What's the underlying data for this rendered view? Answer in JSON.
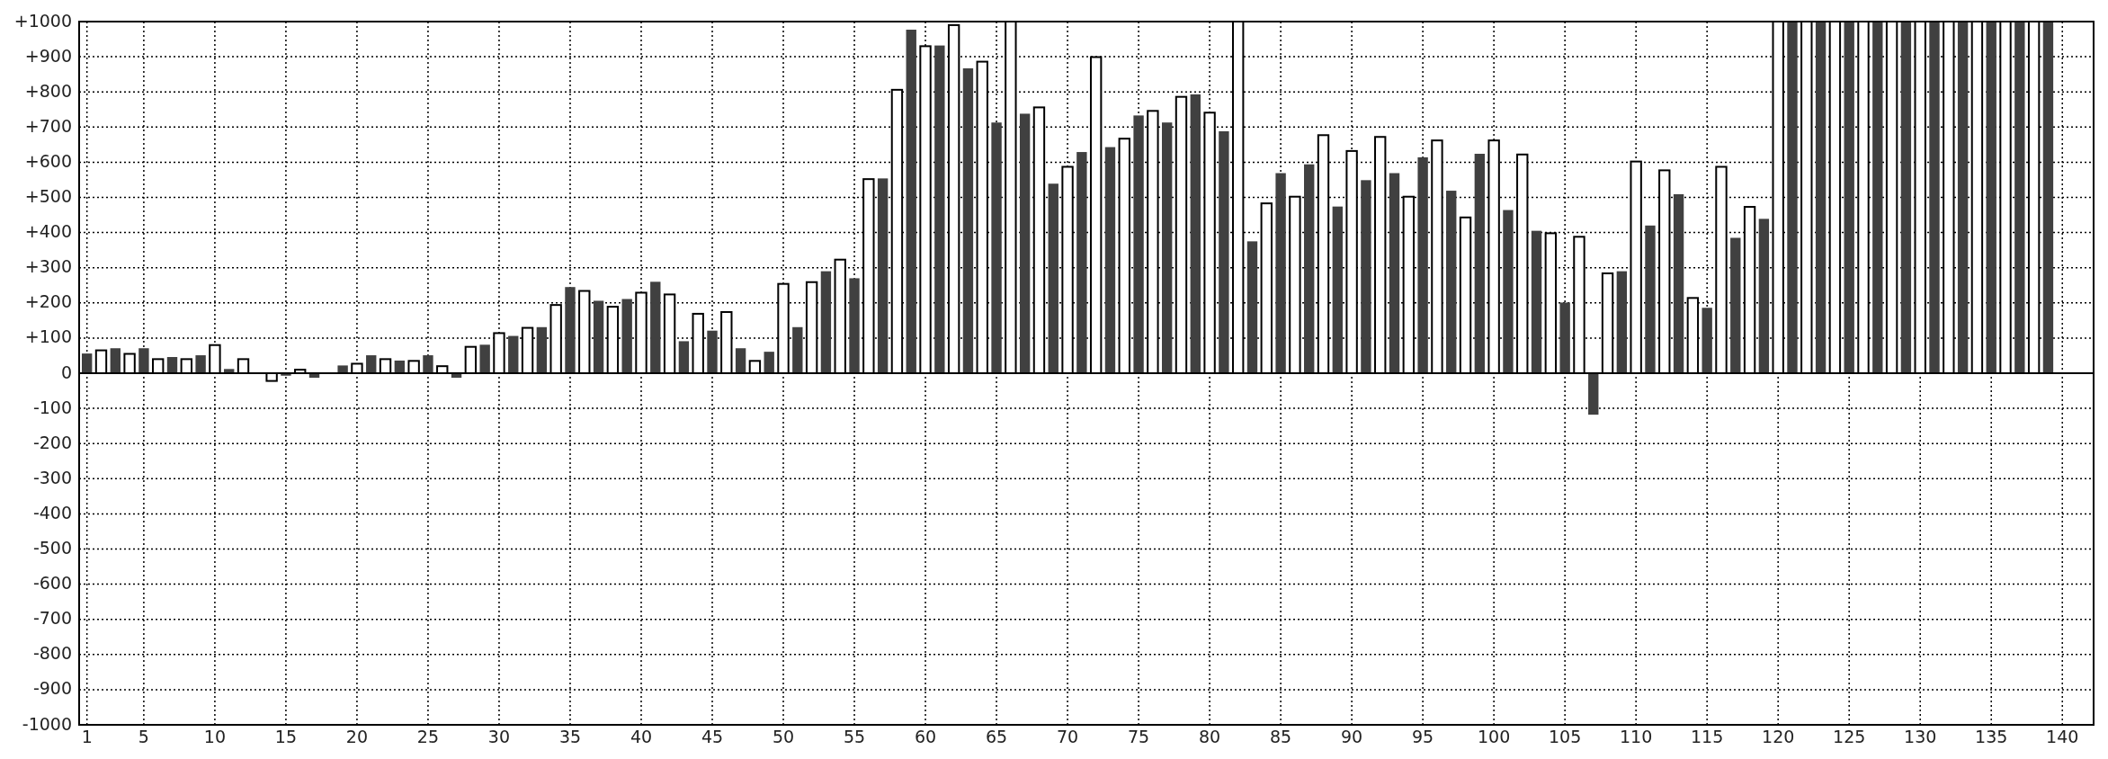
{
  "chart_data": {
    "type": "bar",
    "x": [
      1,
      2,
      3,
      4,
      5,
      6,
      7,
      8,
      9,
      10,
      11,
      12,
      13,
      14,
      15,
      16,
      17,
      18,
      19,
      20,
      21,
      22,
      23,
      24,
      25,
      26,
      27,
      28,
      29,
      30,
      31,
      32,
      33,
      34,
      35,
      36,
      37,
      38,
      39,
      40,
      41,
      42,
      43,
      44,
      45,
      46,
      47,
      48,
      49,
      50,
      51,
      52,
      53,
      54,
      55,
      56,
      57,
      58,
      59,
      60,
      61,
      62,
      63,
      64,
      65,
      66,
      67,
      68,
      69,
      70,
      71,
      72,
      73,
      74,
      75,
      76,
      77,
      78,
      79,
      80,
      81,
      82,
      83,
      84,
      85,
      86,
      87,
      88,
      89,
      90,
      91,
      92,
      93,
      94,
      95,
      96,
      97,
      98,
      99,
      100,
      101,
      102,
      103,
      104,
      105,
      106,
      107,
      108,
      109,
      110,
      111,
      112,
      113,
      114,
      115,
      116,
      117,
      118,
      119,
      120,
      121,
      122,
      123,
      124,
      125,
      126,
      127,
      128,
      129,
      130,
      131,
      132,
      133,
      134,
      135,
      136,
      137,
      138,
      139
    ],
    "values": [
      56,
      65,
      71,
      55,
      71,
      40,
      46,
      40,
      51,
      80,
      12,
      40,
      0,
      -22,
      -7,
      10,
      -13,
      0,
      22,
      27,
      51,
      40,
      36,
      35,
      51,
      20,
      -13,
      75,
      81,
      114,
      106,
      129,
      131,
      194,
      245,
      234,
      206,
      189,
      211,
      229,
      260,
      224,
      91,
      169,
      121,
      174,
      71,
      35,
      61,
      254,
      131,
      259,
      290,
      323,
      270,
      552,
      554,
      806,
      977,
      930,
      932,
      990,
      867,
      886,
      713,
      1000,
      738,
      756,
      539,
      587,
      629,
      899,
      643,
      667,
      733,
      746,
      713,
      786,
      793,
      741,
      688,
      1000,
      375,
      483,
      569,
      502,
      594,
      677,
      474,
      632,
      549,
      672,
      569,
      502,
      614,
      662,
      519,
      443,
      624,
      662,
      464,
      622,
      405,
      398,
      201,
      388,
      -118,
      284,
      290,
      602,
      420,
      577,
      509,
      214,
      186,
      587,
      385,
      473,
      439,
      1000,
      1000,
      1000,
      1000,
      1000,
      1000,
      1000,
      1000,
      1000,
      1000,
      1000,
      1000,
      1000,
      1000,
      1000,
      1000,
      1000,
      1000,
      1000,
      1000
    ],
    "colors": [
      "#404040",
      "#ffffff",
      "#404040",
      "#ffffff",
      "#404040",
      "#ffffff",
      "#404040",
      "#ffffff",
      "#404040",
      "#ffffff",
      "#404040",
      "#ffffff",
      "#404040",
      "#ffffff",
      "#404040",
      "#ffffff",
      "#404040",
      "#ffffff",
      "#404040",
      "#ffffff",
      "#404040",
      "#ffffff",
      "#404040",
      "#ffffff",
      "#404040",
      "#ffffff",
      "#404040",
      "#ffffff",
      "#404040",
      "#ffffff",
      "#404040",
      "#ffffff",
      "#404040",
      "#ffffff",
      "#404040",
      "#ffffff",
      "#404040",
      "#ffffff",
      "#404040",
      "#ffffff",
      "#404040",
      "#ffffff",
      "#404040",
      "#ffffff",
      "#404040",
      "#ffffff",
      "#404040",
      "#ffffff",
      "#404040",
      "#ffffff",
      "#404040",
      "#ffffff",
      "#404040",
      "#ffffff",
      "#404040",
      "#ffffff",
      "#404040",
      "#ffffff",
      "#404040",
      "#ffffff",
      "#404040",
      "#ffffff",
      "#404040",
      "#ffffff",
      "#404040",
      "#ffffff",
      "#404040",
      "#ffffff",
      "#404040",
      "#ffffff",
      "#404040",
      "#ffffff",
      "#404040",
      "#ffffff",
      "#404040",
      "#ffffff",
      "#404040",
      "#ffffff",
      "#404040",
      "#ffffff",
      "#404040",
      "#ffffff",
      "#404040",
      "#ffffff",
      "#404040",
      "#ffffff",
      "#404040",
      "#ffffff",
      "#404040",
      "#ffffff",
      "#404040",
      "#ffffff",
      "#404040",
      "#ffffff",
      "#404040",
      "#ffffff",
      "#404040",
      "#ffffff",
      "#404040",
      "#ffffff",
      "#404040",
      "#ffffff",
      "#404040",
      "#ffffff",
      "#404040",
      "#ffffff",
      "#404040",
      "#ffffff",
      "#404040",
      "#ffffff",
      "#404040",
      "#ffffff",
      "#404040",
      "#ffffff",
      "#404040",
      "#ffffff",
      "#404040",
      "#ffffff",
      "#404040",
      "#ffffff",
      "#404040",
      "#ffffff",
      "#404040",
      "#ffffff",
      "#404040",
      "#ffffff",
      "#404040",
      "#ffffff",
      "#404040",
      "#ffffff",
      "#404040",
      "#ffffff",
      "#404040",
      "#ffffff",
      "#404040",
      "#ffffff",
      "#404040",
      "#ffffff",
      "#404040"
    ],
    "xlim": [
      0.45,
      142.2
    ],
    "xticks": [
      1,
      5,
      10,
      15,
      20,
      25,
      30,
      35,
      40,
      45,
      50,
      55,
      60,
      65,
      70,
      75,
      80,
      85,
      90,
      95,
      100,
      105,
      110,
      115,
      120,
      125,
      130,
      135,
      140
    ],
    "ylim": [
      -1000,
      1000
    ],
    "yticks": [
      {
        "value": -1000,
        "label": "-1000"
      },
      {
        "value": -900,
        "label": "-900"
      },
      {
        "value": -800,
        "label": "-800"
      },
      {
        "value": -700,
        "label": "-700"
      },
      {
        "value": -600,
        "label": "-600"
      },
      {
        "value": -500,
        "label": "-500"
      },
      {
        "value": -400,
        "label": "-400"
      },
      {
        "value": -300,
        "label": "-300"
      },
      {
        "value": -200,
        "label": "-200"
      },
      {
        "value": -100,
        "label": "-100"
      },
      0,
      {
        "value": 100,
        "label": "+100"
      },
      {
        "value": 200,
        "label": "+200"
      },
      {
        "value": 300,
        "label": "+300"
      },
      {
        "value": 400,
        "label": "+400"
      },
      {
        "value": 500,
        "label": "+500"
      },
      {
        "value": 600,
        "label": "+600"
      },
      {
        "value": 700,
        "label": "+700"
      },
      {
        "value": 800,
        "label": "+800"
      },
      {
        "value": 900,
        "label": "+900"
      },
      {
        "value": 1000,
        "label": "+1000"
      }
    ],
    "grid": true
  }
}
